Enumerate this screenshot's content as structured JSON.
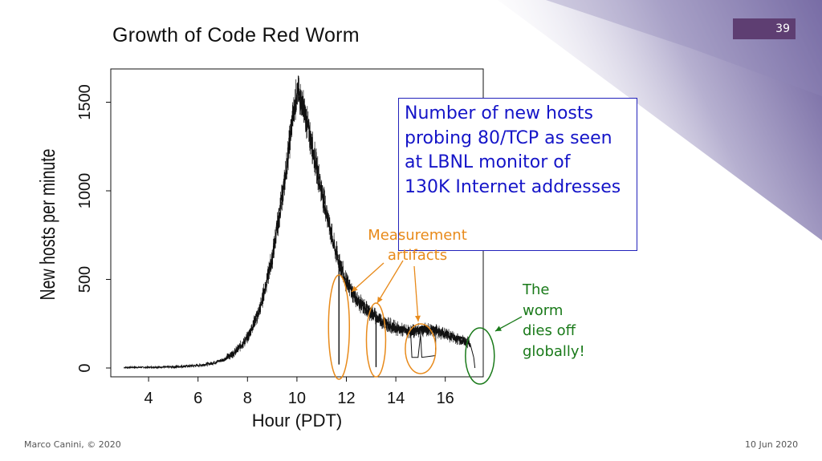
{
  "slide": {
    "number": "39",
    "footer_left": "Marco Canini, © 2020",
    "footer_right": "10 Jun 2020"
  },
  "colors": {
    "accent": "#5e3e72",
    "callout_text": "#1515c8",
    "artifact_annotation": "#e88a1a",
    "worm_annotation": "#1a7a1a"
  },
  "chart_data": {
    "type": "line",
    "title": "Growth of Code Red Worm",
    "xlabel": "Hour (PDT)",
    "ylabel": "New hosts per minute",
    "xlim": [
      2.5,
      18
    ],
    "ylim": [
      -40,
      1700
    ],
    "xticks": [
      "4",
      "6",
      "8",
      "10",
      "12",
      "14",
      "16"
    ],
    "yticks": [
      "0",
      "500",
      "1000",
      "1500"
    ],
    "grid": false,
    "series": [
      {
        "x": [
          3,
          4,
          5,
          6,
          6.5,
          7,
          7.5,
          8,
          8.5,
          9,
          9.5,
          9.8,
          10,
          10.2,
          10.5,
          11,
          11.5,
          12,
          12.5,
          13,
          13.5,
          14,
          14.5,
          15,
          15.5,
          16,
          16.5,
          17
        ],
        "y": [
          3,
          4,
          6,
          14,
          25,
          45,
          90,
          170,
          330,
          620,
          1050,
          1380,
          1560,
          1500,
          1330,
          1000,
          690,
          480,
          370,
          310,
          260,
          225,
          205,
          215,
          215,
          190,
          165,
          140
        ]
      }
    ],
    "annotations": {
      "callout": "Number of new hosts probing 80/TCP as seen at LBNL monitor of\n130K Internet addresses",
      "artifacts_label": "Measurement\nartifacts",
      "worm_label": "The\nworm\ndies off\nglobally!",
      "artifact_hours": [
        11.7,
        13.2,
        15.0
      ],
      "die_off_hour": 17.4
    }
  }
}
